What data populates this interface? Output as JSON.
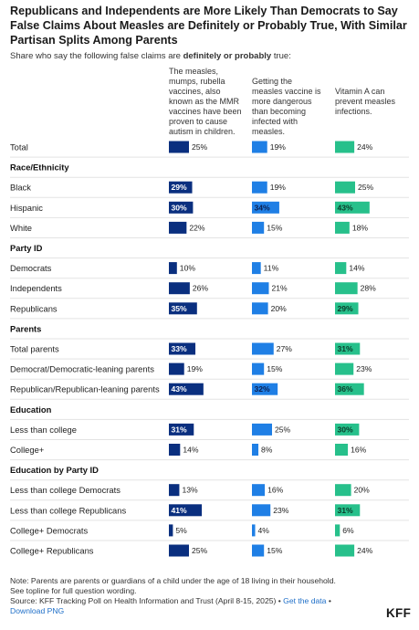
{
  "title": "Republicans and Independents are More Likely Than Democrats to Say False Claims About Measles are Definitely or Probably True, With Similar Partisan Splits Among Parents",
  "subtitle_pre": "Share who say the following false claims are ",
  "subtitle_bold": "definitely or probably",
  "subtitle_post": " true:",
  "chart_data": {
    "type": "bar",
    "series": [
      {
        "name": "The measles, mumps, rubella vaccines, also known as the MMR vaccines have been proven to cause autism in children.",
        "color": "#0a2f7f"
      },
      {
        "name": "Getting the measles vaccine is more dangerous than becoming infected with measles.",
        "color": "#1f7fe5"
      },
      {
        "name": "Vitamin A can prevent measles infections.",
        "color": "#27c08b"
      }
    ],
    "rows": [
      {
        "kind": "row",
        "label": "Total",
        "values": [
          25,
          19,
          24
        ]
      },
      {
        "kind": "section",
        "label": "Race/Ethnicity"
      },
      {
        "kind": "row",
        "label": "Black",
        "values": [
          29,
          19,
          25
        ]
      },
      {
        "kind": "row",
        "label": "Hispanic",
        "values": [
          30,
          34,
          43
        ]
      },
      {
        "kind": "row",
        "label": "White",
        "values": [
          22,
          15,
          18
        ]
      },
      {
        "kind": "section",
        "label": "Party ID"
      },
      {
        "kind": "row",
        "label": "Democrats",
        "values": [
          10,
          11,
          14
        ]
      },
      {
        "kind": "row",
        "label": "Independents",
        "values": [
          26,
          21,
          28
        ]
      },
      {
        "kind": "row",
        "label": "Republicans",
        "values": [
          35,
          20,
          29
        ]
      },
      {
        "kind": "section",
        "label": "Parents"
      },
      {
        "kind": "row",
        "label": "Total parents",
        "values": [
          33,
          27,
          31
        ]
      },
      {
        "kind": "row",
        "label": "Democrat/Democratic-leaning parents",
        "values": [
          19,
          15,
          23
        ]
      },
      {
        "kind": "row",
        "label": "Republican/Republican-leaning parents",
        "values": [
          43,
          32,
          36
        ]
      },
      {
        "kind": "section",
        "label": "Education"
      },
      {
        "kind": "row",
        "label": "Less than college",
        "values": [
          31,
          25,
          30
        ]
      },
      {
        "kind": "row",
        "label": "College+",
        "values": [
          14,
          8,
          16
        ]
      },
      {
        "kind": "section",
        "label": "Education by Party ID"
      },
      {
        "kind": "row",
        "label": "Less than college Democrats",
        "values": [
          13,
          16,
          20
        ]
      },
      {
        "kind": "row",
        "label": "Less than college Republicans",
        "values": [
          41,
          23,
          31
        ]
      },
      {
        "kind": "row",
        "label": "College+ Democrats",
        "values": [
          5,
          4,
          6
        ]
      },
      {
        "kind": "row",
        "label": "College+ Republicans",
        "values": [
          25,
          15,
          24
        ]
      }
    ],
    "bold_inside": [
      [
        29,
        30,
        35,
        33,
        43,
        31,
        41
      ],
      [
        34,
        32
      ],
      [
        43,
        29,
        31,
        36,
        30
      ]
    ],
    "unit": "%"
  },
  "note": {
    "line1": "Note: Parents are parents or guardians of a child under the age of 18 living in their household.",
    "line2": "See topline for full question wording.",
    "source": "Source: KFF Tracking Poll on Health Information and Trust (April 8-15, 2025) • ",
    "get_data": "Get the data",
    "sep": " •",
    "download": "Download PNG"
  },
  "logo": "KFF"
}
